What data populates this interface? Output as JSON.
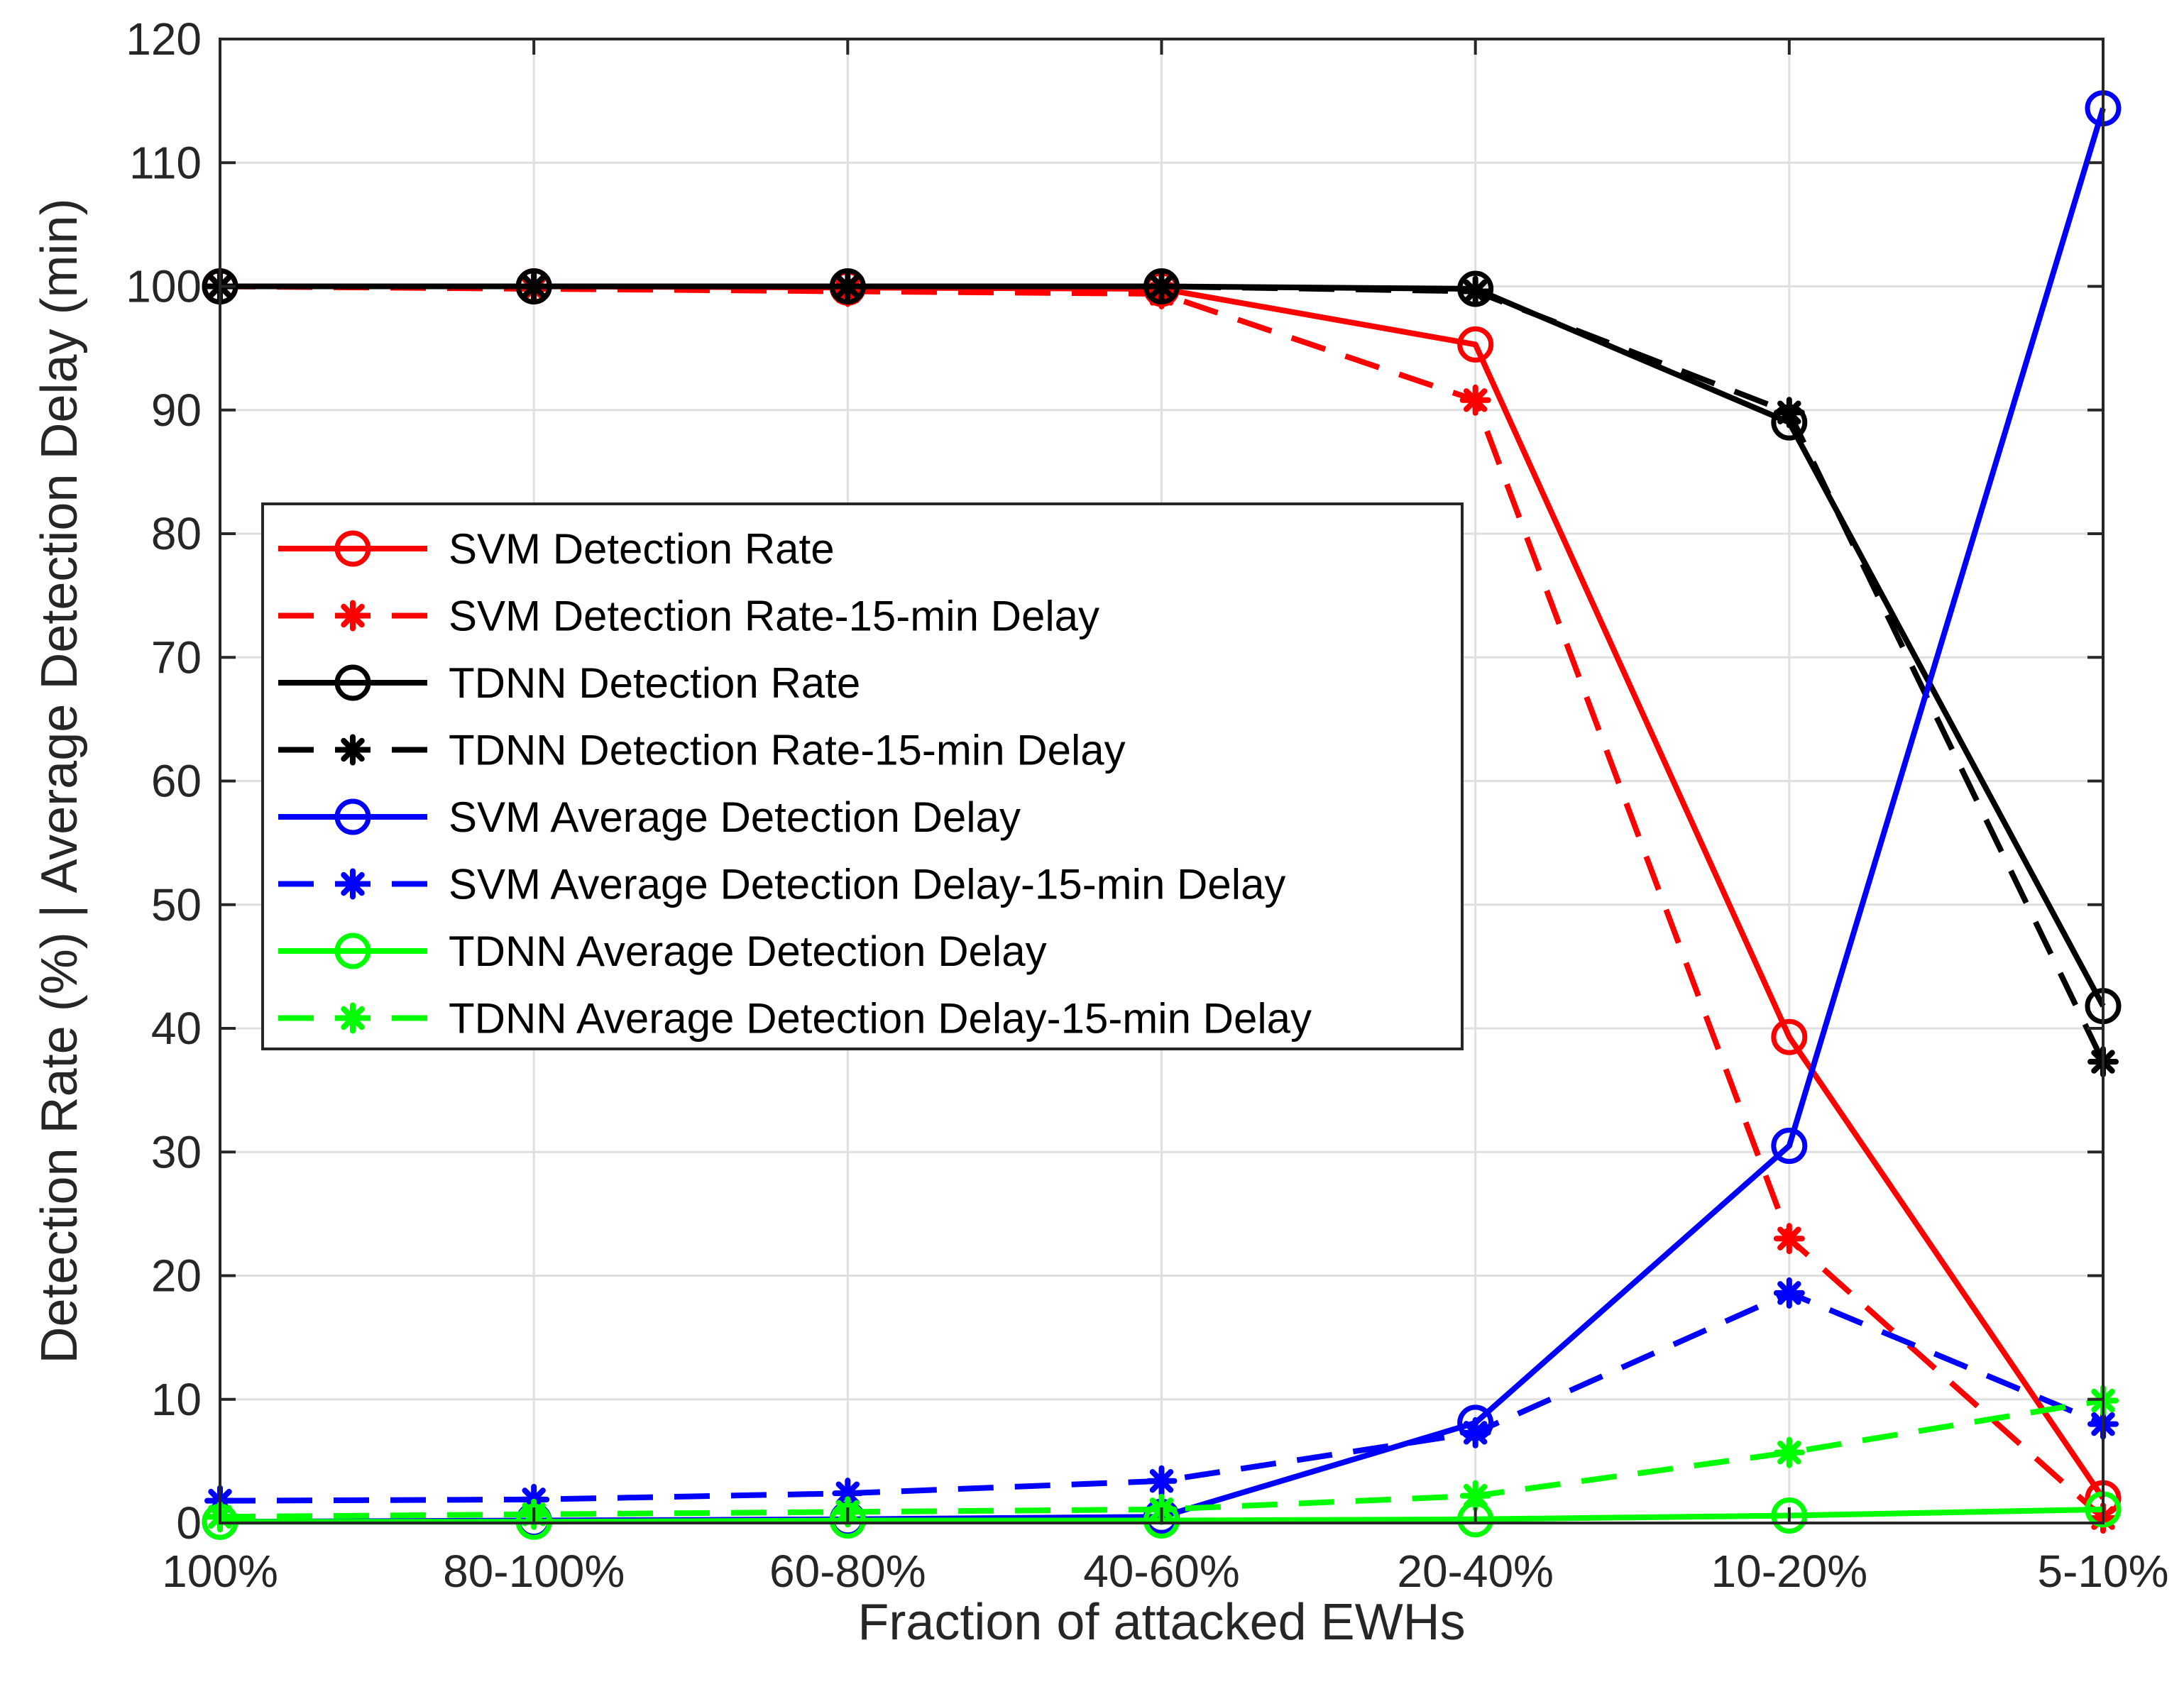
{
  "chart_data": {
    "type": "line",
    "title": "",
    "xlabel": "Fraction of attacked EWHs",
    "ylabel": "Detection Rate (%) | Average Detection Delay (min)",
    "categories": [
      "100%",
      "80-100%",
      "60-80%",
      "40-60%",
      "20-40%",
      "10-20%",
      "5-10%"
    ],
    "ylim": [
      0,
      120
    ],
    "yticks": [
      0,
      10,
      20,
      30,
      40,
      50,
      60,
      70,
      80,
      90,
      100,
      110,
      120
    ],
    "grid": true,
    "legend_position": "center-left",
    "series": [
      {
        "name": "SVM Detection Rate",
        "color": "#ff0000",
        "style": "solid",
        "marker": "circle",
        "values": [
          100,
          100,
          99.9,
          99.8,
          95.3,
          39.3,
          2.0
        ]
      },
      {
        "name": "SVM Detection Rate-15-min Delay",
        "color": "#ff0000",
        "style": "dashed",
        "marker": "asterisk",
        "values": [
          100,
          99.8,
          99.6,
          99.4,
          90.8,
          23.0,
          0.4
        ]
      },
      {
        "name": "TDNN Detection Rate",
        "color": "#000000",
        "style": "solid",
        "marker": "circle",
        "values": [
          100,
          100,
          100,
          100,
          99.8,
          89.0,
          41.8
        ]
      },
      {
        "name": "TDNN Detection Rate-15-min Delay",
        "color": "#000000",
        "style": "dashed",
        "marker": "asterisk",
        "values": [
          100,
          100,
          100,
          100,
          99.6,
          89.8,
          37.3
        ]
      },
      {
        "name": "SVM Average Detection Delay",
        "color": "#0000ff",
        "style": "solid",
        "marker": "circle",
        "values": [
          0.1,
          0.2,
          0.3,
          0.5,
          8.1,
          30.5,
          114.4
        ]
      },
      {
        "name": "SVM Average Detection Delay-15-min Delay",
        "color": "#0000ff",
        "style": "dashed",
        "marker": "asterisk",
        "values": [
          1.8,
          1.9,
          2.4,
          3.4,
          7.3,
          18.6,
          8.0
        ]
      },
      {
        "name": "TDNN Average Detection Delay",
        "color": "#00ff00",
        "style": "solid",
        "marker": "circle",
        "values": [
          0.1,
          0.1,
          0.2,
          0.2,
          0.3,
          0.6,
          1.1
        ]
      },
      {
        "name": "TDNN Average Detection Delay-15-min Delay",
        "color": "#00ff00",
        "style": "dashed",
        "marker": "asterisk",
        "values": [
          0.5,
          0.7,
          0.9,
          1.1,
          2.2,
          5.7,
          9.9
        ]
      }
    ]
  }
}
